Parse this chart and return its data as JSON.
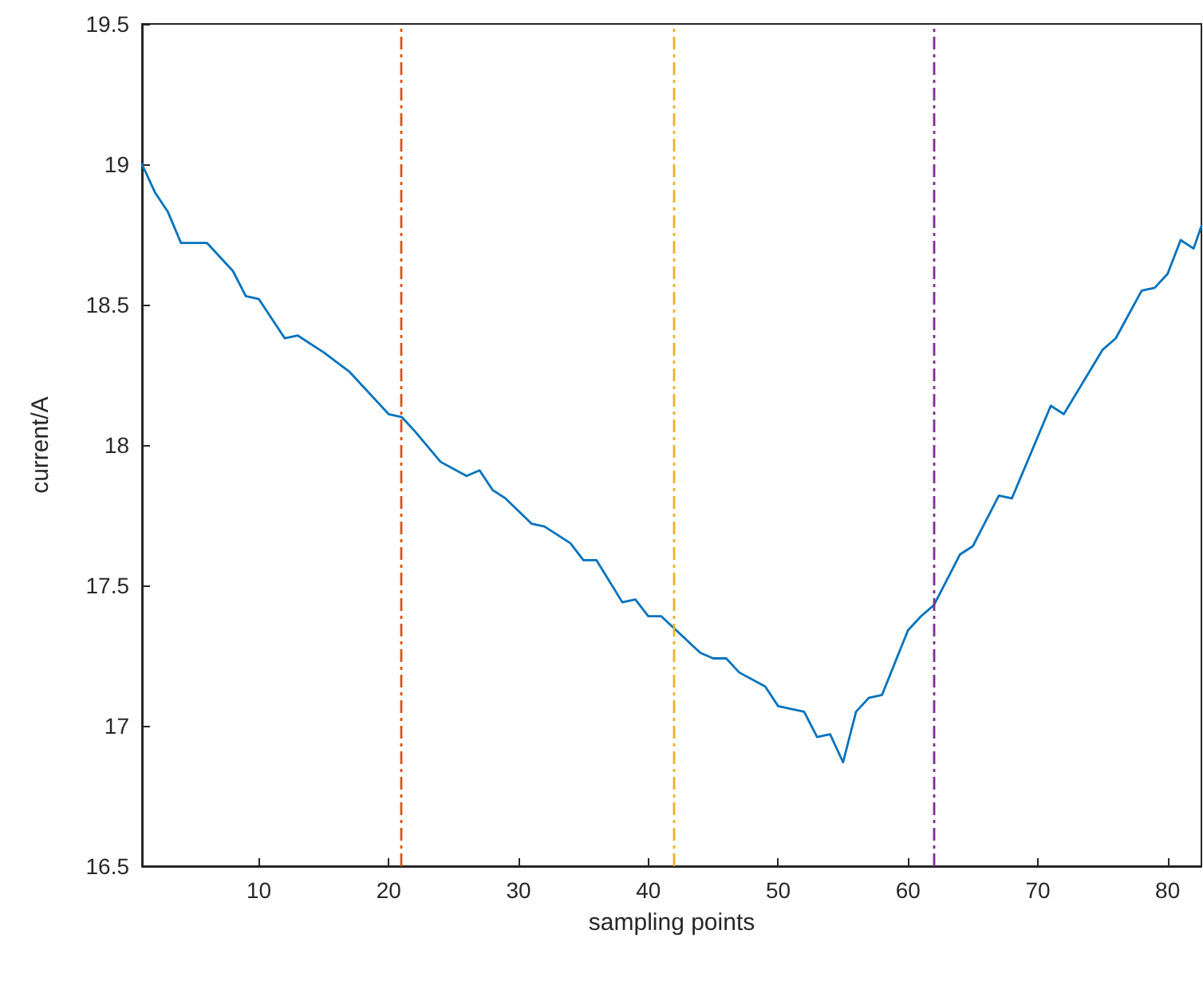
{
  "chart_data": {
    "type": "line",
    "xlabel": "sampling points",
    "ylabel": "current/A",
    "xlim": [
      1,
      82.6
    ],
    "xticks": [
      10,
      20,
      30,
      40,
      50,
      60,
      70,
      80
    ],
    "ylim": [
      16.5,
      19.5
    ],
    "yticks": [
      16.5,
      17,
      17.5,
      18,
      18.5,
      19,
      19.5
    ],
    "marker": "none",
    "series": [
      {
        "color": "#0072bd",
        "x": [
          1,
          2,
          3,
          4,
          6,
          8,
          9,
          10,
          12,
          13,
          15,
          17,
          20,
          21,
          22,
          24,
          26,
          27,
          28,
          29,
          31,
          32,
          34,
          35,
          36,
          38,
          39,
          40,
          41,
          44,
          45,
          46,
          47,
          49,
          50,
          52,
          53,
          54,
          55,
          56,
          57,
          58,
          60,
          61,
          62,
          64,
          65,
          67,
          68,
          71,
          72,
          75,
          76,
          78,
          79,
          80,
          81,
          82,
          82.6
        ],
        "values": [
          19.0,
          18.9,
          18.83,
          18.72,
          18.72,
          18.62,
          18.53,
          18.52,
          18.38,
          18.39,
          18.33,
          18.26,
          18.11,
          18.1,
          18.05,
          17.94,
          17.89,
          17.91,
          17.84,
          17.81,
          17.72,
          17.71,
          17.65,
          17.59,
          17.59,
          17.44,
          17.45,
          17.39,
          17.39,
          17.26,
          17.24,
          17.24,
          17.19,
          17.14,
          17.07,
          17.05,
          16.96,
          16.97,
          16.87,
          17.05,
          17.1,
          17.11,
          17.34,
          17.39,
          17.43,
          17.61,
          17.64,
          17.82,
          17.81,
          18.14,
          18.11,
          18.34,
          18.38,
          18.55,
          18.56,
          18.61,
          18.73,
          18.7,
          18.78
        ]
      }
    ],
    "ref_lines": [
      {
        "axis": "x",
        "value": 21,
        "color": "#d95319",
        "line_style": "dashed"
      },
      {
        "axis": "x",
        "value": 42,
        "color": "#edb120",
        "line_style": "dashed"
      },
      {
        "axis": "x",
        "value": 62,
        "color": "#7e2f8e",
        "line_style": "dashed"
      }
    ]
  }
}
